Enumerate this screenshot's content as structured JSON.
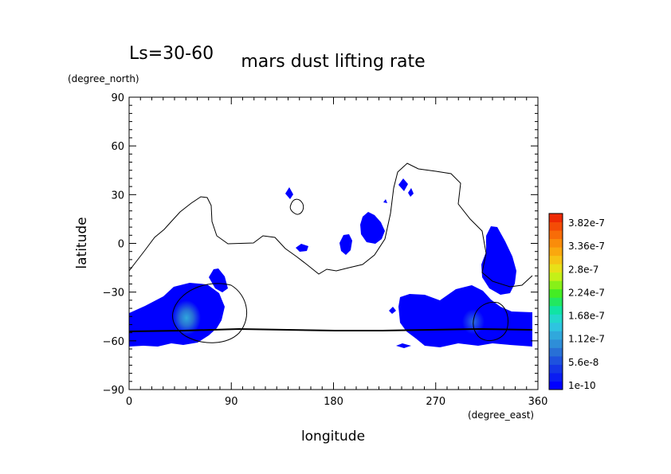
{
  "chart_data": {
    "type": "heatmap",
    "subtitle": "Ls=30-60",
    "title": "mars dust lifting rate",
    "xlabel": "longitude",
    "ylabel": "latitude",
    "xunits": "(degree_east)",
    "yunits": "(degree_north)",
    "xlim": [
      0,
      360
    ],
    "ylim": [
      -90,
      90
    ],
    "xticks": [
      0,
      90,
      180,
      270,
      360
    ],
    "yticks": [
      90,
      60,
      30,
      0,
      -30,
      -60,
      -90
    ],
    "grid": false,
    "legend": "right",
    "colorbar": {
      "labels": [
        "3.82e-7",
        "3.36e-7",
        "2.8e-7",
        "2.24e-7",
        "1.68e-7",
        "1.12e-7",
        "5.6e-8",
        "1e-10"
      ],
      "colors": [
        "#0000ff",
        "#0a1cf2",
        "#1436e6",
        "#1e52de",
        "#2870d6",
        "#2e8ed8",
        "#30a8dc",
        "#2ec4e0",
        "#22d8cc",
        "#10e4a4",
        "#22e860",
        "#44ec24",
        "#88f018",
        "#c4f018",
        "#e8e018",
        "#f6c414",
        "#faa80e",
        "#fa8c0a",
        "#f86c08",
        "#f44c06",
        "#ee2a04"
      ]
    },
    "regions": [
      {
        "lon": [
          5,
          100
        ],
        "lat": [
          -64,
          -38
        ],
        "intensity": "low"
      },
      {
        "lon": [
          50,
          55
        ],
        "lat": [
          -50,
          -42
        ],
        "intensity": "1.12e-7"
      },
      {
        "lon": [
          238,
          358
        ],
        "lat": [
          -64,
          -26
        ],
        "intensity": "low"
      },
      {
        "lon": [
          315,
          345
        ],
        "lat": [
          -30,
          10
        ],
        "intensity": "low"
      },
      {
        "lon": [
          200,
          225
        ],
        "lat": [
          -5,
          20
        ],
        "intensity": "low"
      }
    ]
  }
}
